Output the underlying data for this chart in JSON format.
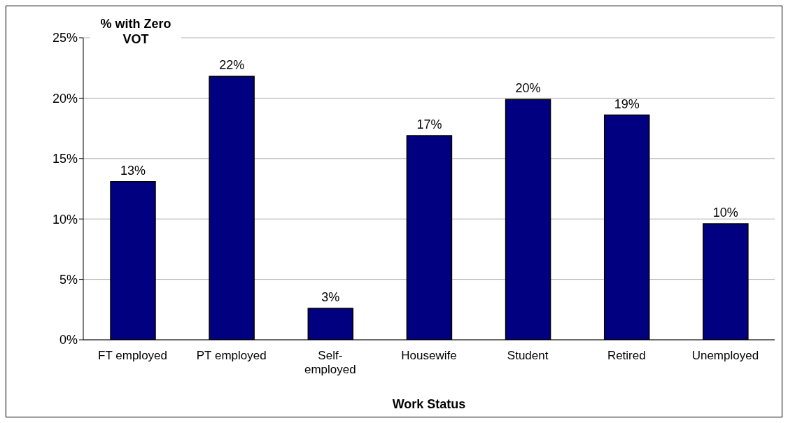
{
  "chart_data": {
    "type": "bar",
    "ylabel": "% with Zero VOT",
    "xlabel": "Work Status",
    "categories": [
      "FT employed",
      "PT employed",
      "Self-employed",
      "Housewife",
      "Student",
      "Retired",
      "Unemployed"
    ],
    "values": [
      13.1,
      21.8,
      2.6,
      16.9,
      19.9,
      18.6,
      9.6
    ],
    "value_labels": [
      "13%",
      "22%",
      "3%",
      "17%",
      "20%",
      "19%",
      "10%"
    ],
    "color": "#000080",
    "ylim": [
      0,
      25
    ],
    "yticks": [
      {
        "value": 0,
        "label": "0%"
      },
      {
        "value": 5,
        "label": "5%"
      },
      {
        "value": 10,
        "label": "10%"
      },
      {
        "value": 15,
        "label": "15%"
      },
      {
        "value": 20,
        "label": "20%"
      },
      {
        "value": 25,
        "label": "25%"
      }
    ],
    "grid": "y"
  }
}
